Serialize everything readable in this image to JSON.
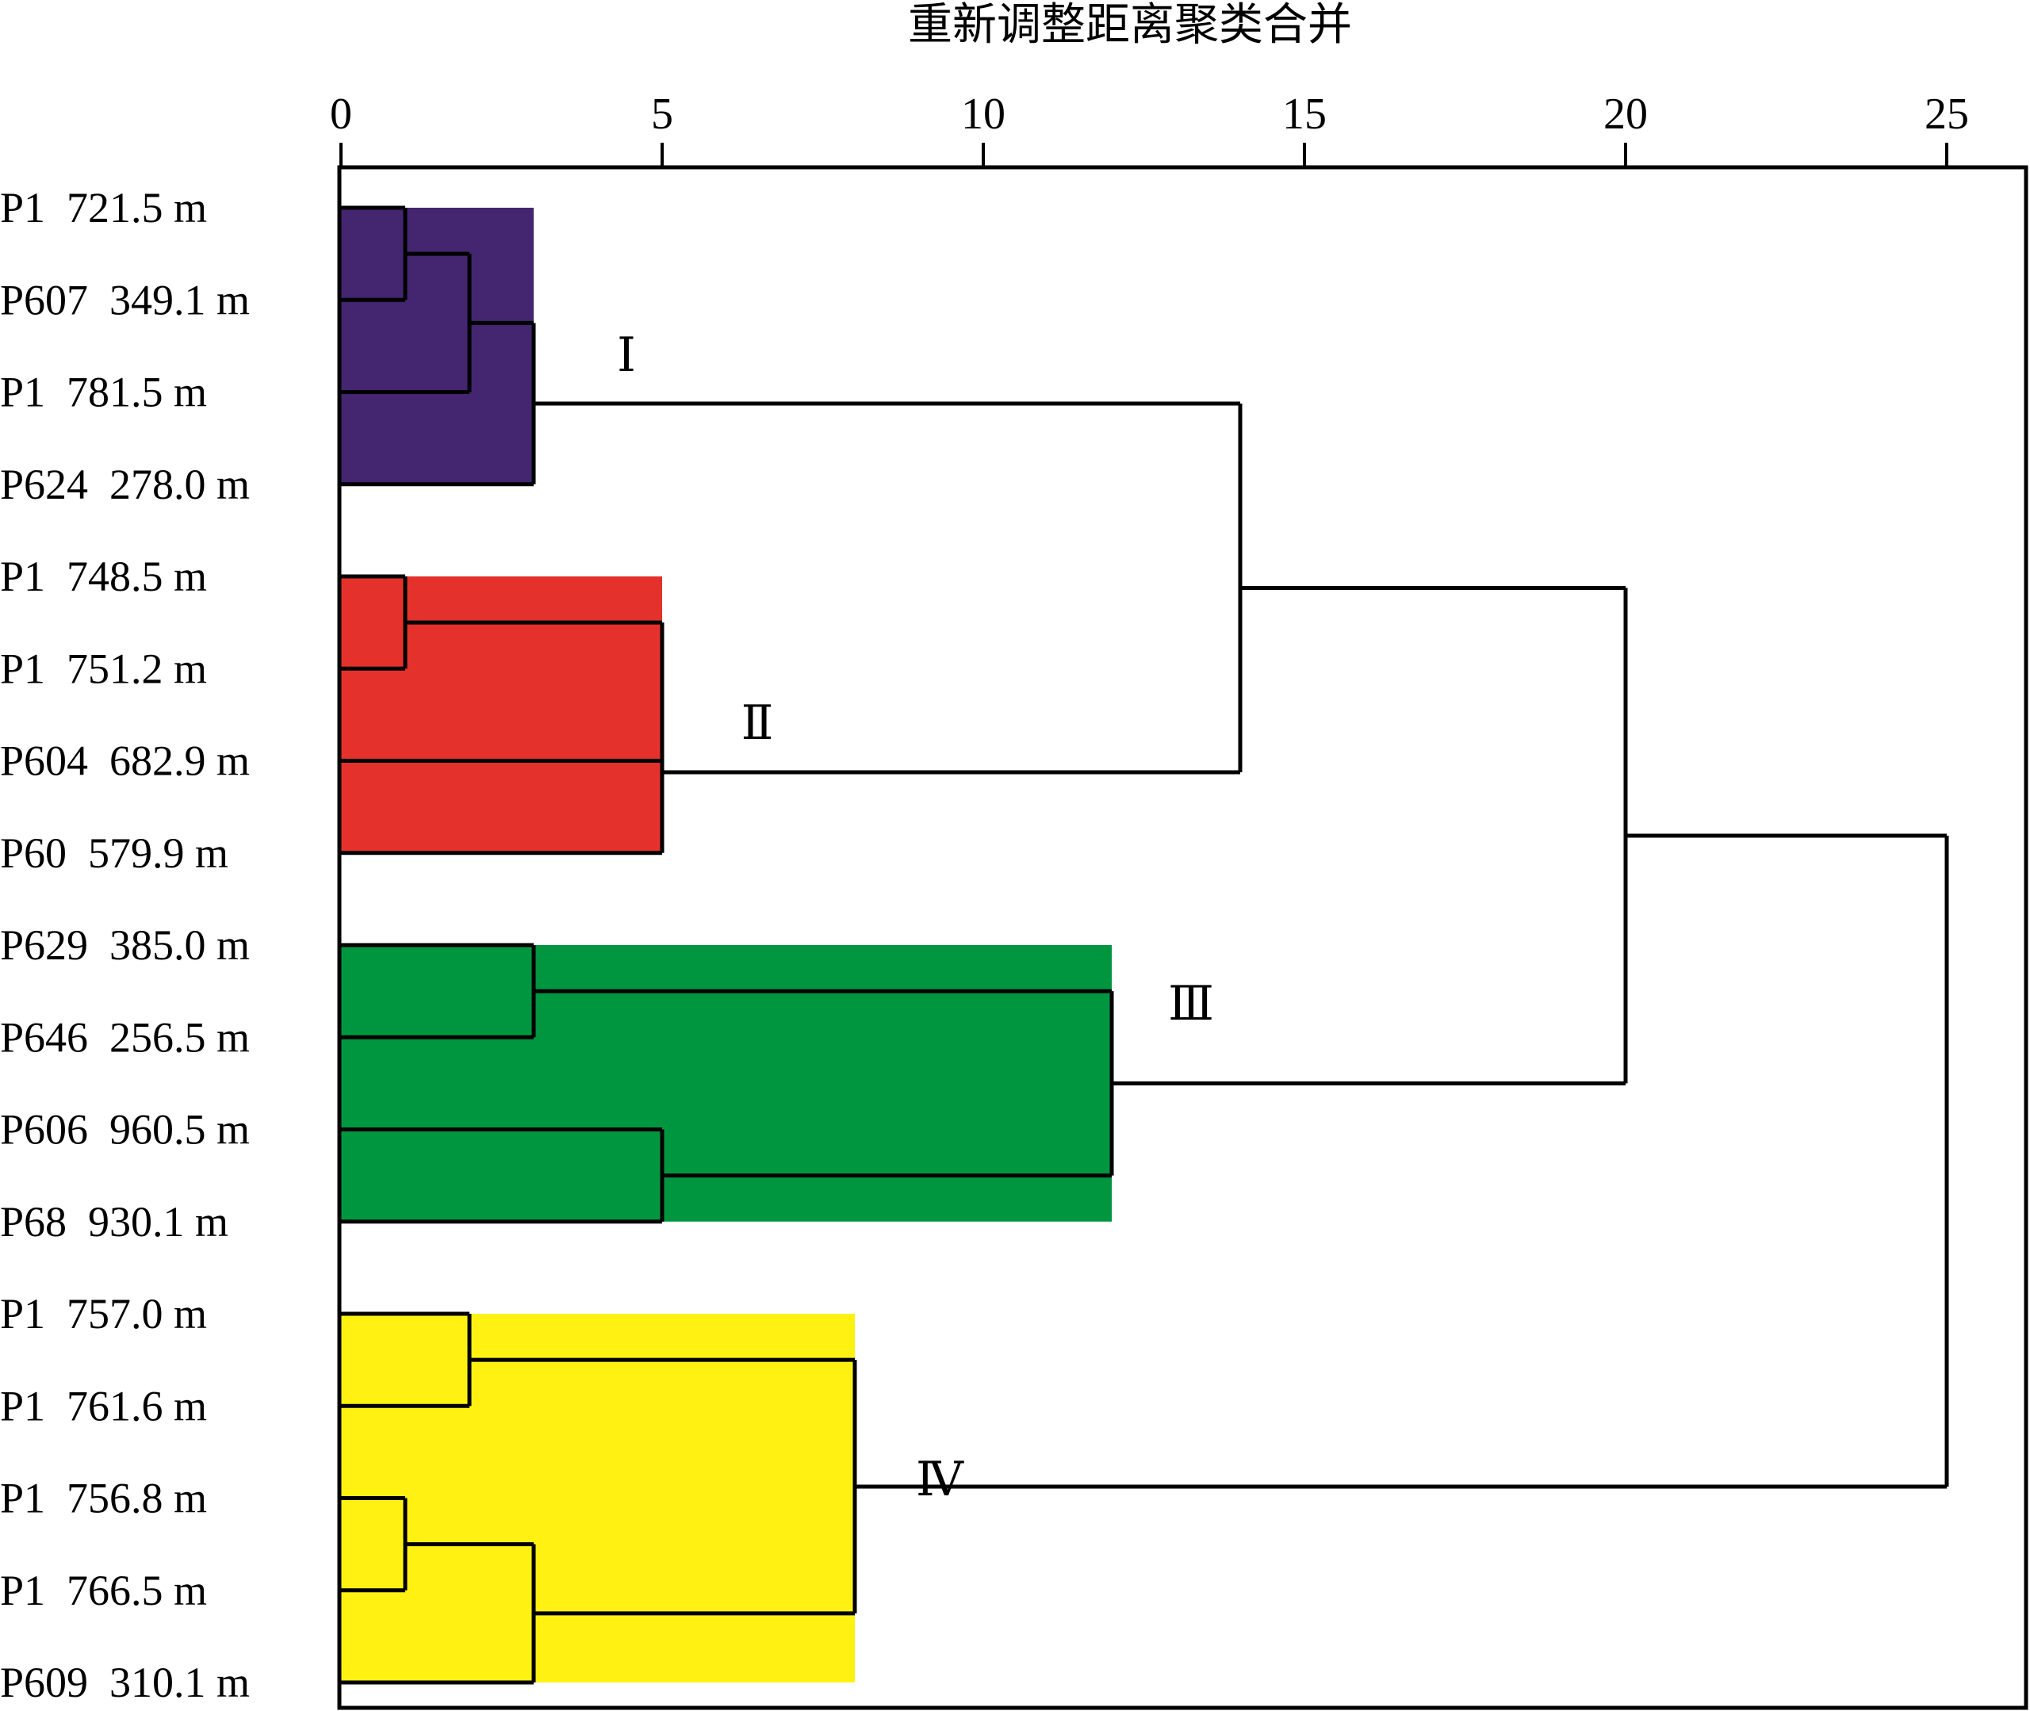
{
  "chart_data": {
    "type": "dendrogram",
    "title": "重新调整距离聚类合并",
    "xlim": [
      0,
      25
    ],
    "ticks": [
      "0",
      "5",
      "10",
      "15",
      "20",
      "25"
    ],
    "tick_values": [
      0,
      5,
      10,
      15,
      20,
      25
    ],
    "leaves": [
      "P1  721.5 m",
      "P607  349.1 m",
      "P1  781.5 m",
      "P624  278.0 m",
      "P1  748.5 m",
      "P1  751.2 m",
      "P604  682.9 m",
      "P60  579.9 m",
      "P629  385.0 m",
      "P646  256.5 m",
      "P606  960.5 m",
      "P68  930.1 m",
      "P1  757.0 m",
      "P1  761.6 m",
      "P1  756.8 m",
      "P1  766.5 m",
      "P609  310.1 m"
    ],
    "merges": [
      {
        "a": 0,
        "b": 1,
        "distance": 1
      },
      {
        "a": 17,
        "b": 2,
        "distance": 2
      },
      {
        "a": 18,
        "b": 3,
        "distance": 3
      },
      {
        "a": 4,
        "b": 5,
        "distance": 1
      },
      {
        "a": 20,
        "b": 6,
        "distance": 5
      },
      {
        "a": 21,
        "b": 7,
        "distance": 5
      },
      {
        "a": 8,
        "b": 9,
        "distance": 3
      },
      {
        "a": 10,
        "b": 11,
        "distance": 5
      },
      {
        "a": 23,
        "b": 24,
        "distance": 12
      },
      {
        "a": 12,
        "b": 13,
        "distance": 2
      },
      {
        "a": 14,
        "b": 15,
        "distance": 1
      },
      {
        "a": 27,
        "b": 16,
        "distance": 3
      },
      {
        "a": 26,
        "b": 28,
        "distance": 8
      },
      {
        "a": 19,
        "b": 22,
        "distance": 14
      },
      {
        "a": 30,
        "b": 25,
        "distance": 20
      },
      {
        "a": 31,
        "b": 29,
        "distance": 25
      }
    ],
    "clusters": [
      {
        "label": "Ⅰ",
        "color": "#43266f",
        "leaf_range": [
          0,
          3
        ],
        "root_merge": 2
      },
      {
        "label": "Ⅱ",
        "color": "#e4312c",
        "leaf_range": [
          4,
          7
        ],
        "root_merge": 5
      },
      {
        "label": "Ⅲ",
        "color": "#009640",
        "leaf_range": [
          8,
          11
        ],
        "root_merge": 8
      },
      {
        "label": "Ⅳ",
        "color": "#fff213",
        "leaf_range": [
          12,
          16
        ],
        "root_merge": 12
      }
    ]
  }
}
